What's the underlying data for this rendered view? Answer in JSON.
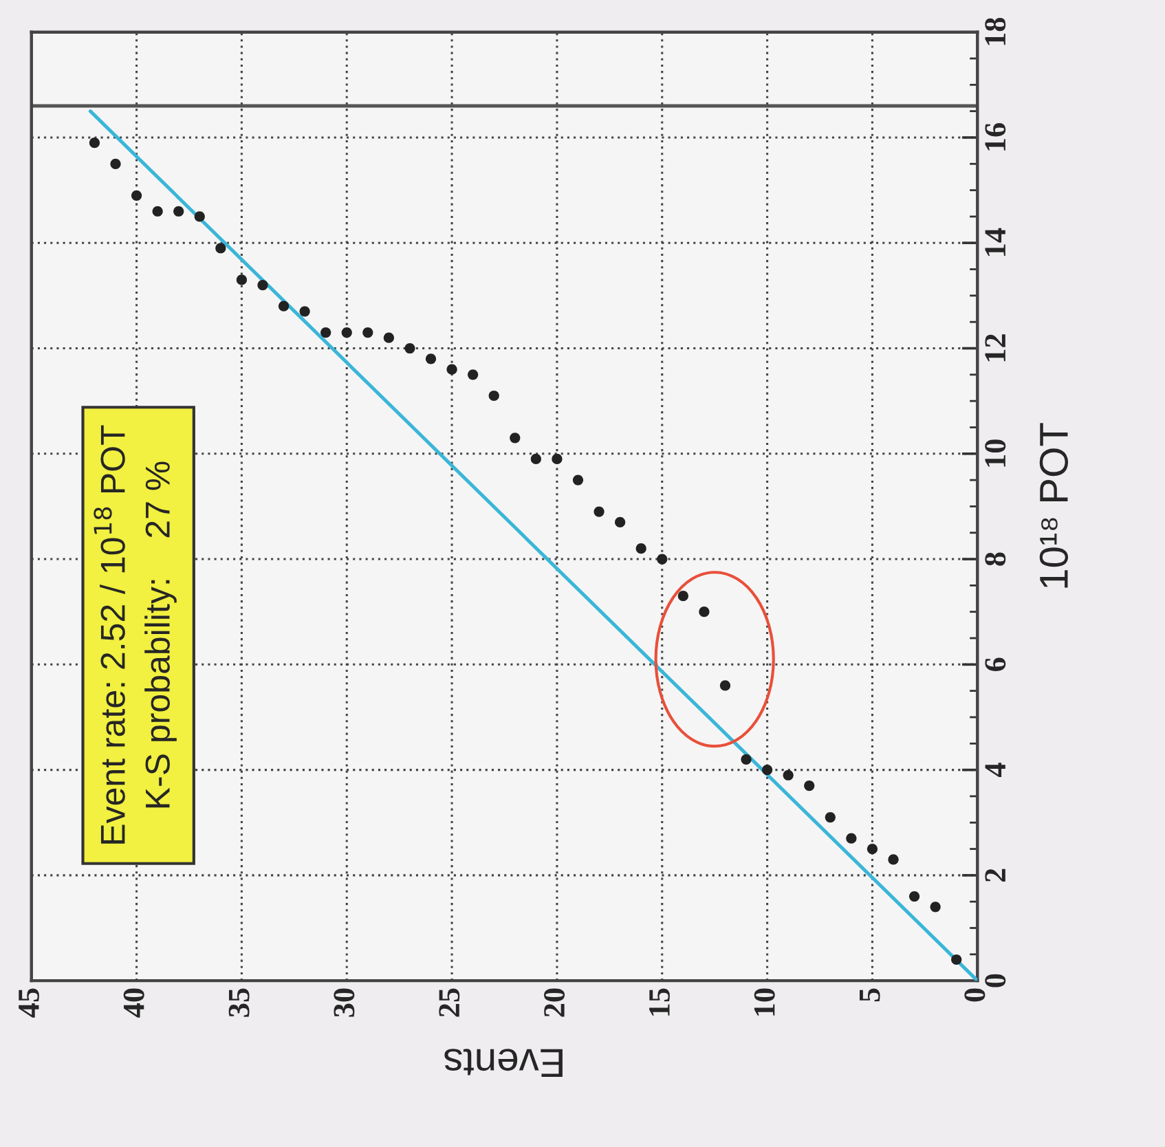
{
  "chart_data": {
    "type": "scatter",
    "xlabel": "Events",
    "ylabel": "10¹⁸ POT",
    "xlim": [
      45,
      0
    ],
    "xticks": [
      45,
      40,
      35,
      30,
      25,
      20,
      15,
      10,
      5,
      0
    ],
    "ylim": [
      0,
      18
    ],
    "yticks": [
      0,
      2,
      4,
      6,
      8,
      10,
      12,
      14,
      16,
      18
    ],
    "grid": true,
    "series": [
      {
        "marker": "circle",
        "color": "#222222",
        "x": [
          1,
          2,
          3,
          4,
          5,
          6,
          7,
          8,
          9,
          10,
          11,
          12,
          13,
          14,
          15,
          16,
          17,
          18,
          19,
          20,
          21,
          22,
          23,
          24,
          25,
          26,
          27,
          28,
          29,
          30,
          31,
          32,
          33,
          34,
          35,
          36,
          37,
          38,
          39,
          40,
          41,
          42
        ],
        "values": [
          0.4,
          1.4,
          1.6,
          2.3,
          2.5,
          2.7,
          3.1,
          3.7,
          3.9,
          4.0,
          4.2,
          5.6,
          7.0,
          7.3,
          8.0,
          8.2,
          8.7,
          8.9,
          9.5,
          9.9,
          9.9,
          10.3,
          11.1,
          11.5,
          11.6,
          11.8,
          12.0,
          12.2,
          12.3,
          12.3,
          12.3,
          12.7,
          12.8,
          13.2,
          13.3,
          13.9,
          14.5,
          14.6,
          14.6,
          14.9,
          15.5,
          15.9
        ]
      },
      {
        "type": "line",
        "color": "#3ab6d8",
        "x": [
          0,
          42.2
        ],
        "values": [
          0,
          16.5
        ]
      }
    ],
    "ref_lines": [
      {
        "axis": "y",
        "value": 16.6,
        "color": "#555555"
      }
    ],
    "annotations": [
      "Event rate: 2.52 / 10$^{18}$ POT",
      "K-S probability:    27 %"
    ]
  }
}
